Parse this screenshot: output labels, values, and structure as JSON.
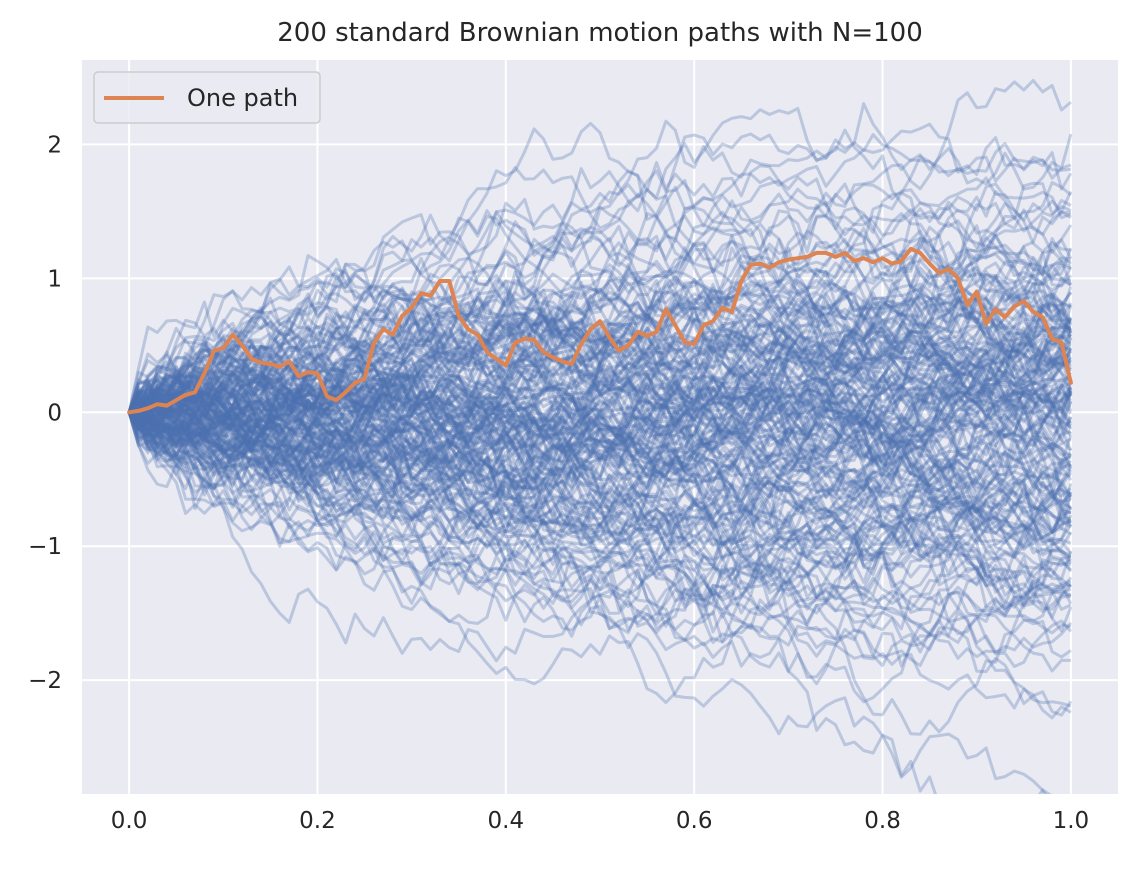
{
  "chart_data": {
    "type": "line",
    "title": "200 standard Brownian motion paths with N=100",
    "xlabel": "",
    "ylabel": "",
    "xlim": [
      -0.05,
      1.05
    ],
    "ylim": [
      -2.85,
      2.63
    ],
    "x_ticks": [
      0.0,
      0.2,
      0.4,
      0.6,
      0.8,
      1.0
    ],
    "x_tick_labels": [
      "0.0",
      "0.2",
      "0.4",
      "0.6",
      "0.8",
      "1.0"
    ],
    "y_ticks": [
      2,
      1,
      0,
      -1,
      -2
    ],
    "y_tick_labels": [
      "2",
      "1",
      "0",
      "−1",
      "−2"
    ],
    "grid": true,
    "legend_position": "upper-left",
    "n_background_paths": 200,
    "n_steps": 100,
    "background_color": "#EAEAF2",
    "background_series_color": "#4C72B0",
    "background_series_alpha": 0.3,
    "highlight_series": {
      "name": "One path",
      "color": "#DD8452",
      "x_step": 0.01,
      "values": [
        0.0,
        0.01,
        0.03,
        0.06,
        0.05,
        0.09,
        0.13,
        0.15,
        0.29,
        0.46,
        0.48,
        0.58,
        0.5,
        0.4,
        0.37,
        0.36,
        0.34,
        0.38,
        0.27,
        0.3,
        0.29,
        0.12,
        0.09,
        0.15,
        0.22,
        0.25,
        0.52,
        0.62,
        0.58,
        0.72,
        0.78,
        0.89,
        0.87,
        0.98,
        0.98,
        0.72,
        0.62,
        0.58,
        0.45,
        0.4,
        0.35,
        0.52,
        0.55,
        0.54,
        0.45,
        0.41,
        0.38,
        0.36,
        0.51,
        0.62,
        0.68,
        0.56,
        0.46,
        0.5,
        0.6,
        0.57,
        0.6,
        0.77,
        0.65,
        0.52,
        0.51,
        0.65,
        0.68,
        0.78,
        0.75,
        0.98,
        1.1,
        1.11,
        1.08,
        1.12,
        1.14,
        1.15,
        1.16,
        1.19,
        1.19,
        1.16,
        1.19,
        1.13,
        1.15,
        1.12,
        1.15,
        1.11,
        1.13,
        1.22,
        1.19,
        1.11,
        1.04,
        1.07,
        1.0,
        0.8,
        0.9,
        0.66,
        0.77,
        0.71,
        0.79,
        0.83,
        0.75,
        0.71,
        0.55,
        0.52,
        0.22
      ]
    }
  }
}
